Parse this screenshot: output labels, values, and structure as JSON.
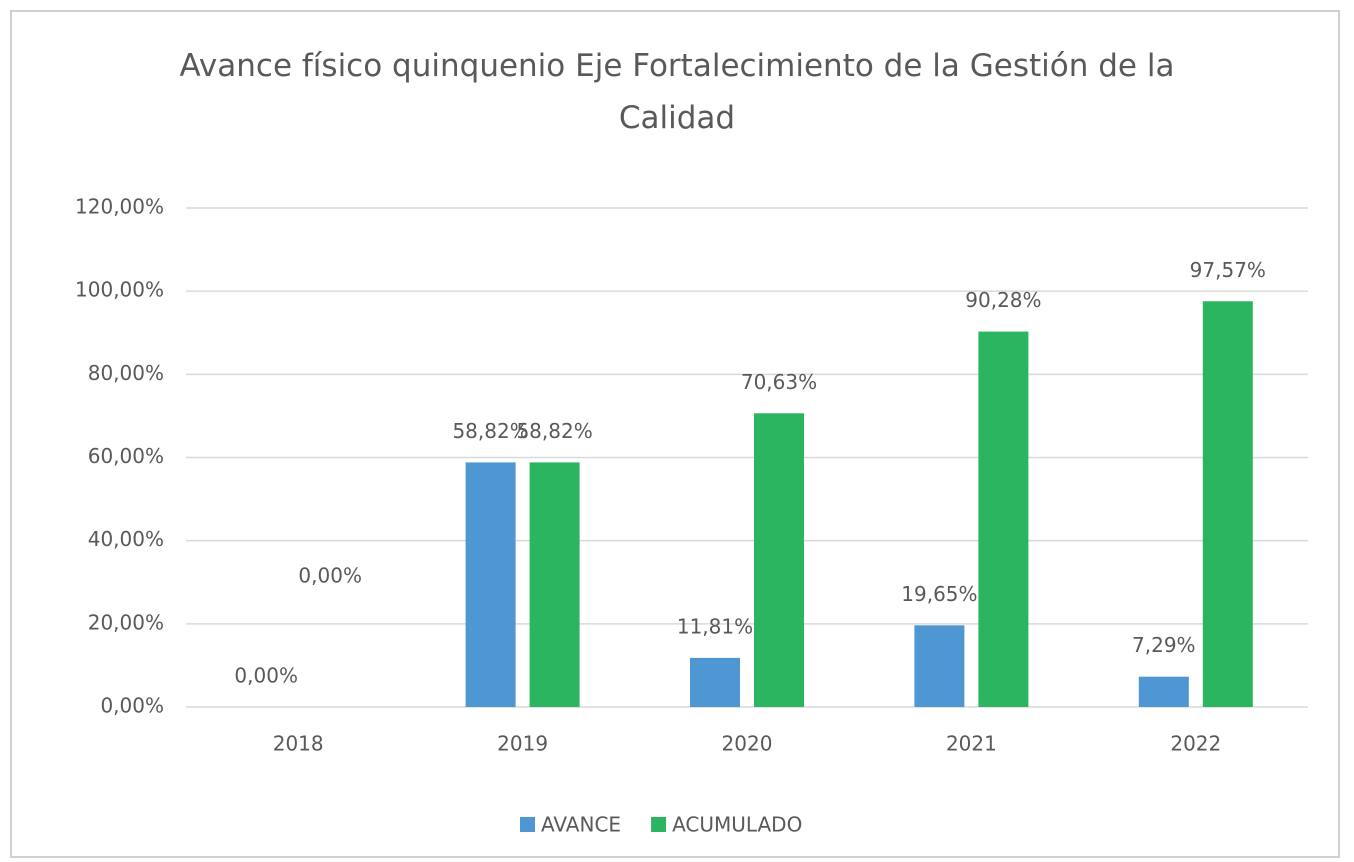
{
  "chart_data": {
    "type": "bar",
    "title": "Avance físico quinquenio Eje Fortalecimiento de la Gestión de la Calidad",
    "categories": [
      "2018",
      "2019",
      "2020",
      "2021",
      "2022"
    ],
    "series": [
      {
        "name": "AVANCE",
        "color": "#4f97d3",
        "values": [
          0,
          58.82,
          11.81,
          19.65,
          7.29
        ],
        "value_labels": [
          "0,00%",
          "58,82%",
          "11,81%",
          "19,65%",
          "7,29%"
        ]
      },
      {
        "name": "ACUMULADO",
        "color": "#2bb561",
        "values": [
          0,
          58.82,
          70.63,
          90.28,
          97.57
        ],
        "value_labels": [
          "0,00%",
          "58,82%",
          "70,63%",
          "90,28%",
          "97,57%"
        ]
      }
    ],
    "ylim": [
      0,
      120
    ],
    "yticks": [
      {
        "value": 0,
        "label": "0,00%"
      },
      {
        "value": 20,
        "label": "20,00%"
      },
      {
        "value": 40,
        "label": "40,00%"
      },
      {
        "value": 60,
        "label": "60,00%"
      },
      {
        "value": 80,
        "label": "80,00%"
      },
      {
        "value": 100,
        "label": "100,00%"
      },
      {
        "value": 120,
        "label": "120,00%"
      }
    ],
    "grid": true,
    "legend": "bottom"
  }
}
